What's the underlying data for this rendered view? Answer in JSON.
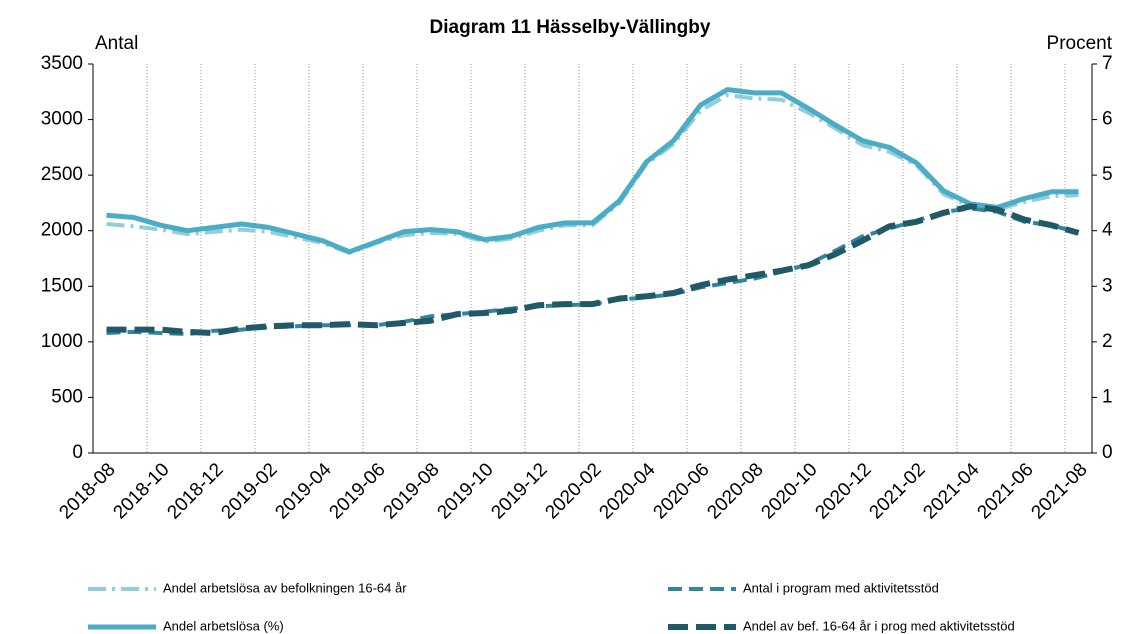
{
  "chart_data": {
    "type": "line",
    "title": "Diagram 11 Hässelby-Vällingby",
    "y_label": "Antal",
    "y2_label": "Procent",
    "categories": [
      "2018-08",
      null,
      "2018-10",
      null,
      "2018-12",
      null,
      "2019-02",
      null,
      "2019-04",
      null,
      "2019-06",
      null,
      "2019-08",
      null,
      "2019-10",
      null,
      "2019-12",
      null,
      "2020-02",
      null,
      "2020-04",
      null,
      "2020-06",
      null,
      "2020-08",
      null,
      "2020-10",
      null,
      "2020-12",
      null,
      "2021-02",
      null,
      "2021-04",
      null,
      "2021-06",
      null,
      "2021-08"
    ],
    "ylim": [
      0,
      3500
    ],
    "yticks": [
      0,
      500,
      1000,
      1500,
      2000,
      2500,
      3000,
      3500
    ],
    "y2lim": [
      0,
      7
    ],
    "y2ticks": [
      0,
      1,
      2,
      3,
      4,
      5,
      6,
      7
    ],
    "grid": true,
    "series": [
      {
        "name": "Andel arbetslösa av befolkningen 16-64 år",
        "color": "#92cddc",
        "axis": "y2",
        "values": [
          4.12,
          4.08,
          4.02,
          3.94,
          3.98,
          4.02,
          3.98,
          3.88,
          3.78,
          3.6,
          3.78,
          3.92,
          3.96,
          3.94,
          3.8,
          3.86,
          4.0,
          4.1,
          4.1,
          4.5,
          5.2,
          5.56,
          6.16,
          6.44,
          6.38,
          6.36,
          6.12,
          5.84,
          5.54,
          5.42,
          5.18,
          4.66,
          4.44,
          4.38,
          4.52,
          4.62,
          4.64
        ]
      },
      {
        "name": "Antal i program med aktivitetsstöd",
        "color": "#31859c",
        "values": [
          1080,
          1090,
          1080,
          1070,
          1100,
          1110,
          1130,
          1140,
          1150,
          1150,
          1150,
          1180,
          1230,
          1250,
          1270,
          1300,
          1320,
          1330,
          1340,
          1380,
          1400,
          1430,
          1490,
          1530,
          1570,
          1630,
          1700,
          1820,
          1950,
          2020,
          2090,
          2170,
          2200,
          2170,
          2080,
          2050,
          1980
        ]
      },
      {
        "name": "Andel arbetslösa (%)",
        "color": "#4bacc6",
        "axis": "y2",
        "values": [
          4.28,
          4.24,
          4.1,
          4.0,
          4.06,
          4.12,
          4.06,
          3.94,
          3.82,
          3.62,
          3.8,
          3.98,
          4.02,
          3.98,
          3.84,
          3.9,
          4.06,
          4.14,
          4.14,
          4.54,
          5.24,
          5.62,
          6.26,
          6.54,
          6.48,
          6.48,
          6.2,
          5.9,
          5.62,
          5.5,
          5.22,
          4.72,
          4.48,
          4.42,
          4.58,
          4.7,
          4.7
        ]
      },
      {
        "name": "Andel av bef. 16-64 år i prog med aktivitetsstöd",
        "color": "#215968",
        "axis": "y2",
        "values": [
          2.22,
          2.22,
          2.22,
          2.18,
          2.16,
          2.24,
          2.28,
          2.3,
          2.3,
          2.32,
          2.3,
          2.34,
          2.38,
          2.5,
          2.52,
          2.56,
          2.66,
          2.68,
          2.68,
          2.78,
          2.82,
          2.88,
          3.02,
          3.12,
          3.2,
          3.28,
          3.38,
          3.58,
          3.82,
          4.08,
          4.16,
          4.32,
          4.44,
          4.38,
          4.2,
          4.1,
          3.96
        ]
      }
    ]
  }
}
